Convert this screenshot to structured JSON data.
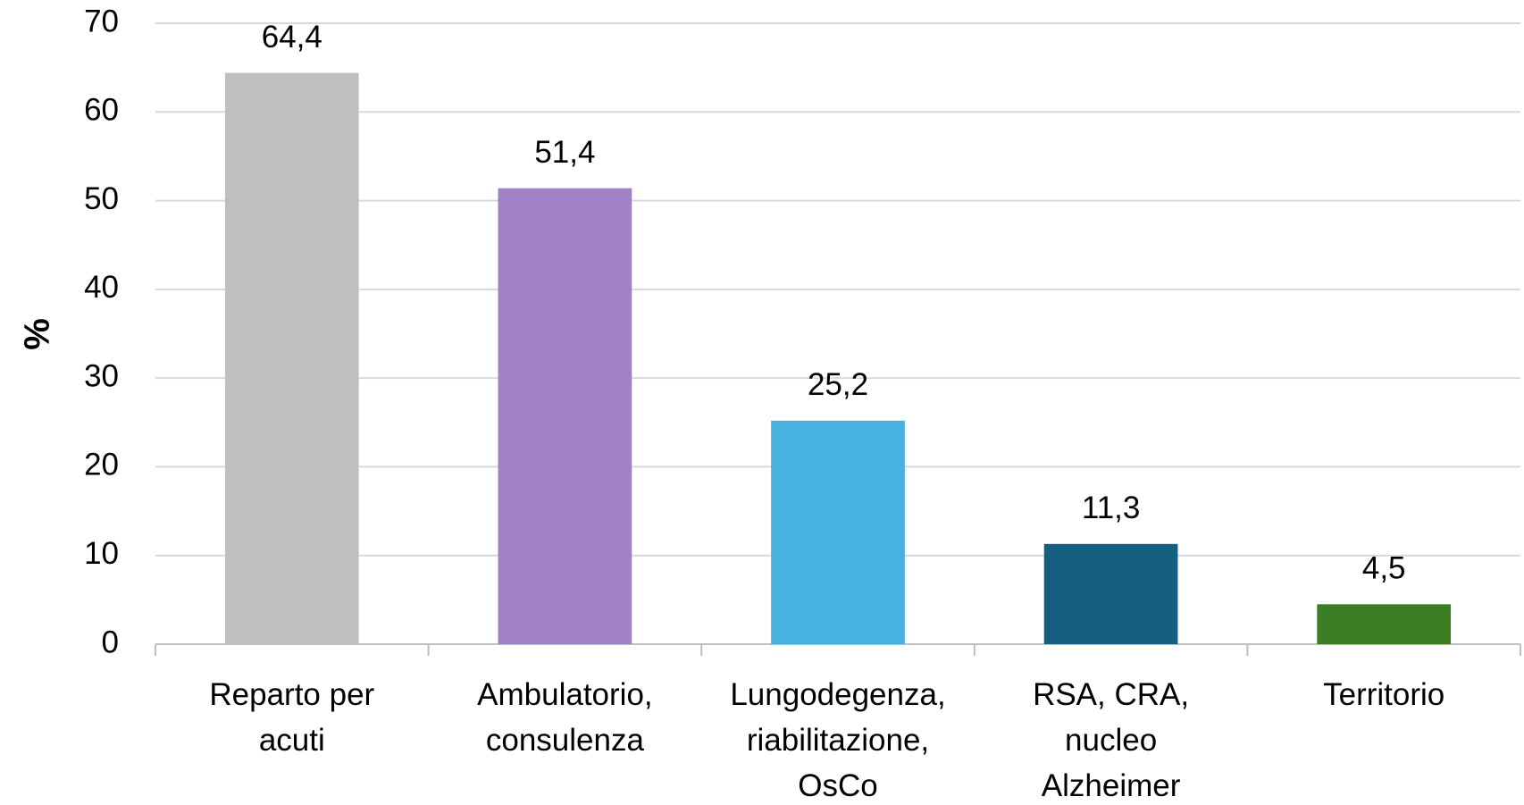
{
  "chart_data": {
    "type": "bar",
    "ylabel": "%",
    "categories": [
      "Reparto per\nacuti",
      "Ambulatorio,\nconsulenza",
      "Lungodegenza,\nriabilitazione,\nOsCo",
      "RSA, CRA,\nnucleo\nAlzheimer",
      "Territorio"
    ],
    "values": [
      64.4,
      51.4,
      25.2,
      11.3,
      4.5
    ],
    "value_labels": [
      "64,4",
      "51,4",
      "25,2",
      "11,3",
      "4,5"
    ],
    "colors": [
      "#bfbfbf",
      "#a082c4",
      "#47b1e0",
      "#156082",
      "#3b7d23"
    ],
    "ylim": [
      0,
      70
    ],
    "yticks": [
      0,
      10,
      20,
      30,
      40,
      50,
      60,
      70
    ],
    "grid": true
  }
}
